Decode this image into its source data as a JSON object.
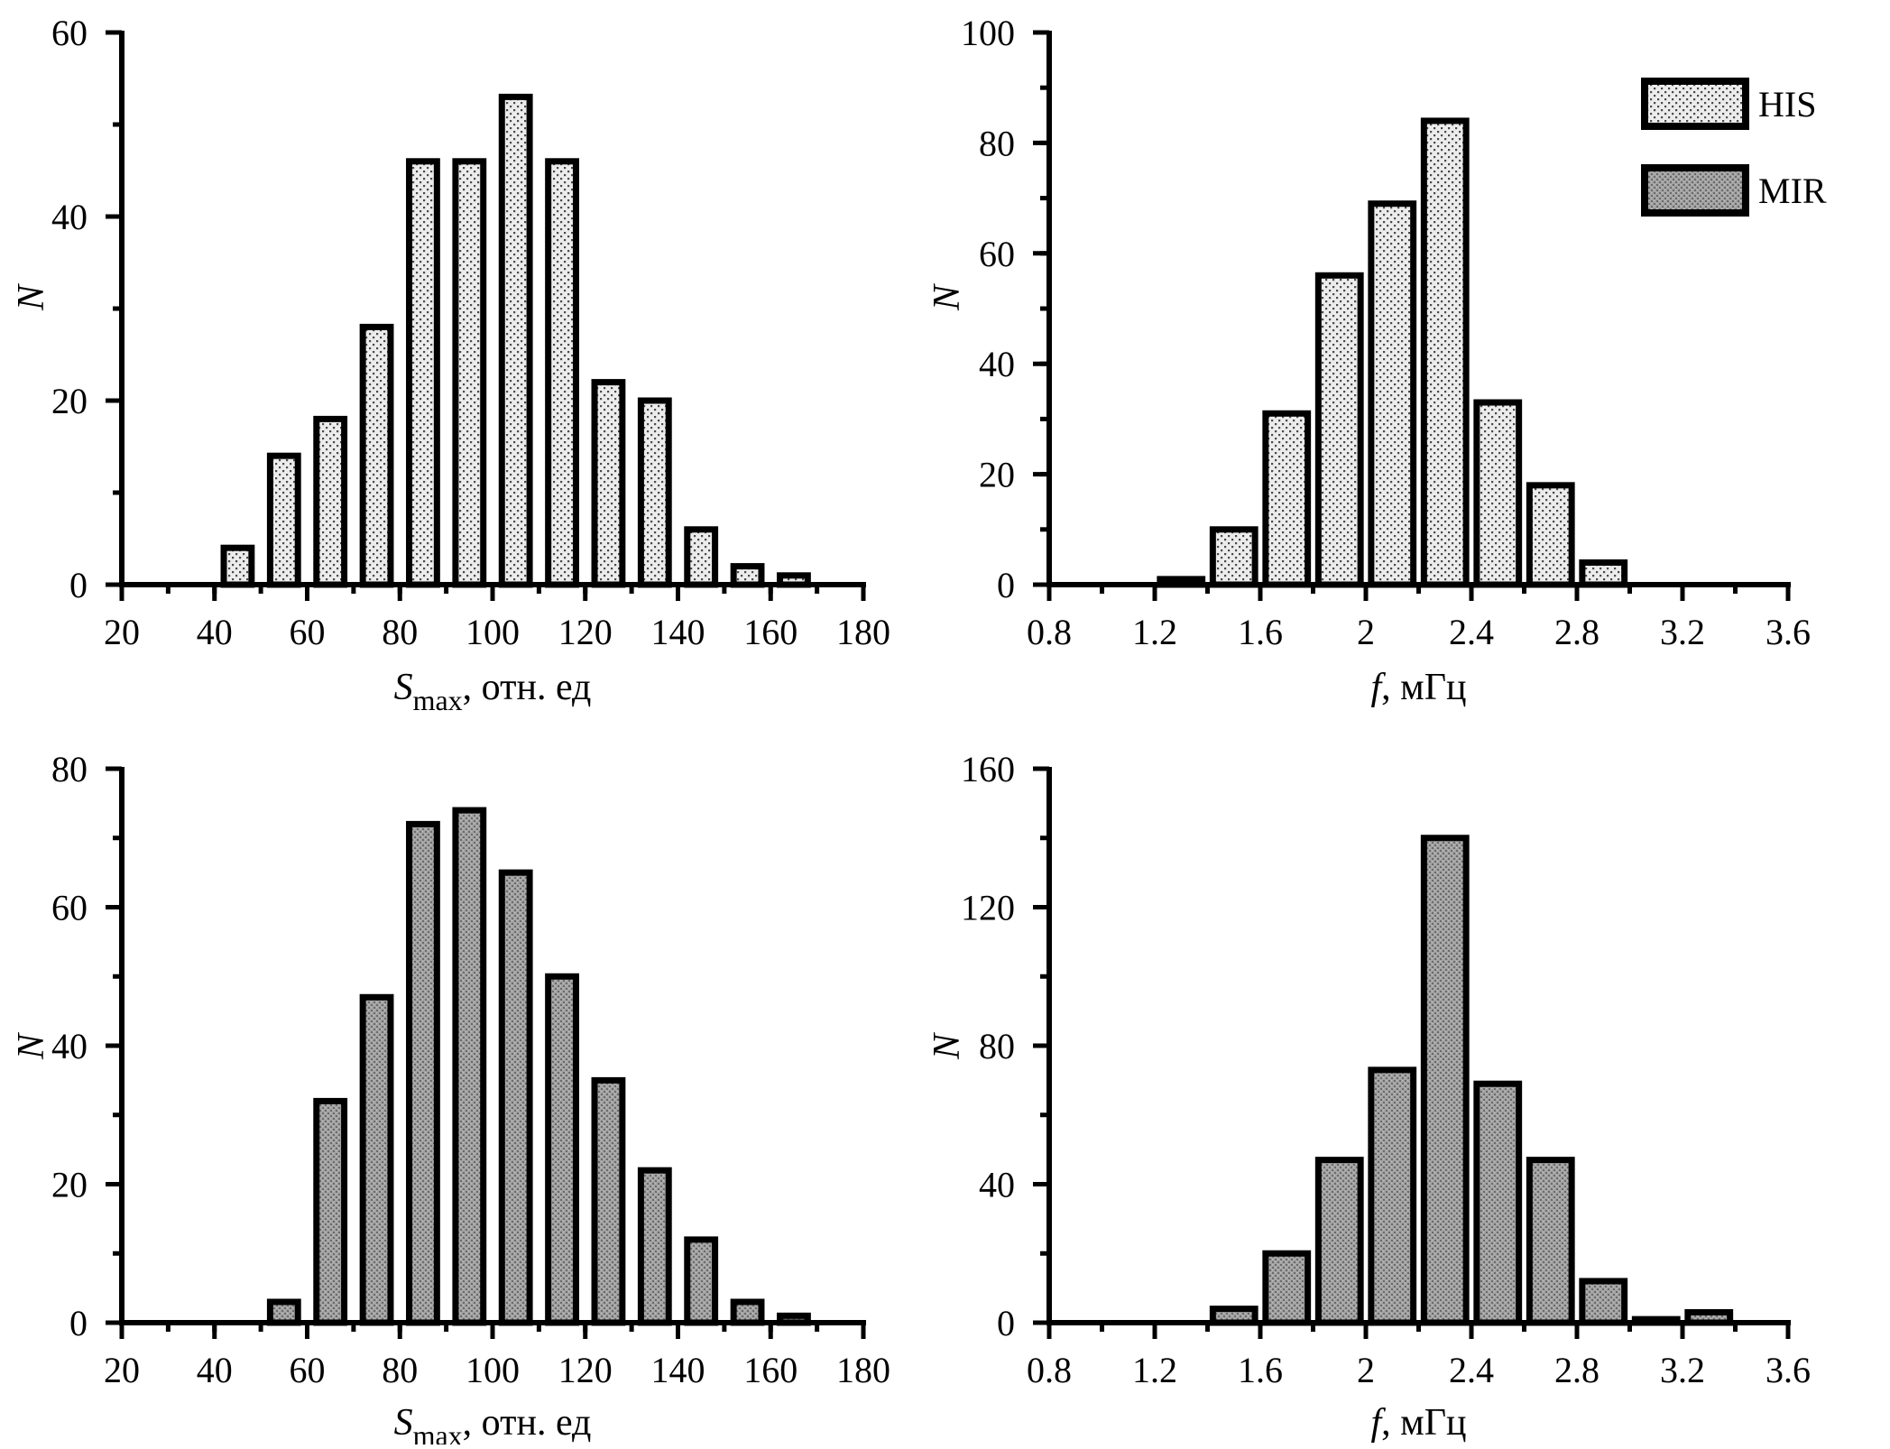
{
  "legend": {
    "his_label": "HIS",
    "mir_label": "MIR"
  },
  "colors": {
    "axis": "#000000",
    "his_fill": "#e9e9e9",
    "mir_fill": "#9a9a9a",
    "dot_dark": "#5a5a5a"
  },
  "chart_data": [
    {
      "id": "his-smax",
      "type": "bar",
      "series_name": "HIS",
      "pattern": "his",
      "title": "",
      "xlabel": {
        "main": "S",
        "sub": "max",
        "suffix": ", отн. ед"
      },
      "ylabel": "N",
      "xlim": [
        20,
        180
      ],
      "ylim": [
        0,
        60
      ],
      "x_ticks": [
        20,
        40,
        60,
        80,
        100,
        120,
        140,
        160,
        180
      ],
      "x_tick_labels": [
        "20",
        "40",
        "60",
        "80",
        "100",
        "120",
        "140",
        "160",
        "180"
      ],
      "y_ticks": [
        0,
        20,
        40,
        60
      ],
      "y_tick_labels": [
        "0",
        "20",
        "40",
        "60"
      ],
      "minor_x": 10,
      "minor_y": 10,
      "bar_width": 6,
      "x": [
        45,
        55,
        65,
        75,
        85,
        95,
        105,
        115,
        125,
        135,
        145,
        155,
        165
      ],
      "values": [
        4,
        14,
        18,
        28,
        46,
        46,
        53,
        46,
        22,
        20,
        6,
        2,
        1
      ]
    },
    {
      "id": "his-f",
      "type": "bar",
      "series_name": "HIS",
      "pattern": "his",
      "title": "",
      "xlabel": {
        "main": "f",
        "sub": "",
        "suffix": ", мГц"
      },
      "ylabel": "N",
      "xlim": [
        0.8,
        3.6
      ],
      "ylim": [
        0,
        100
      ],
      "x_ticks": [
        0.8,
        1.2,
        1.6,
        2.0,
        2.4,
        2.8,
        3.2,
        3.6
      ],
      "x_tick_labels": [
        "0.8",
        "1.2",
        "1.6",
        "2",
        "2.4",
        "2.8",
        "3.2",
        "3.6"
      ],
      "y_ticks": [
        0,
        20,
        40,
        60,
        80,
        100
      ],
      "y_tick_labels": [
        "0",
        "20",
        "40",
        "60",
        "80",
        "100"
      ],
      "minor_x": 0.2,
      "minor_y": 10,
      "bar_width": 0.16,
      "x": [
        1.3,
        1.5,
        1.7,
        1.9,
        2.1,
        2.3,
        2.5,
        2.7,
        2.9
      ],
      "values": [
        1,
        10,
        31,
        56,
        69,
        84,
        33,
        18,
        4
      ]
    },
    {
      "id": "mir-smax",
      "type": "bar",
      "series_name": "MIR",
      "pattern": "mir",
      "title": "",
      "xlabel": {
        "main": "S",
        "sub": "max",
        "suffix": ", отн. ед"
      },
      "ylabel": "N",
      "xlim": [
        20,
        180
      ],
      "ylim": [
        0,
        80
      ],
      "x_ticks": [
        20,
        40,
        60,
        80,
        100,
        120,
        140,
        160,
        180
      ],
      "x_tick_labels": [
        "20",
        "40",
        "60",
        "80",
        "100",
        "120",
        "140",
        "160",
        "180"
      ],
      "y_ticks": [
        0,
        20,
        40,
        60,
        80
      ],
      "y_tick_labels": [
        "0",
        "20",
        "40",
        "60",
        "80"
      ],
      "minor_x": 10,
      "minor_y": 10,
      "bar_width": 6,
      "x": [
        55,
        65,
        75,
        85,
        95,
        105,
        115,
        125,
        135,
        145,
        155,
        165
      ],
      "values": [
        3,
        32,
        47,
        72,
        74,
        65,
        50,
        35,
        22,
        12,
        3,
        1
      ]
    },
    {
      "id": "mir-f",
      "type": "bar",
      "series_name": "MIR",
      "pattern": "mir",
      "title": "",
      "xlabel": {
        "main": "f",
        "sub": "",
        "suffix": ", мГц"
      },
      "ylabel": "N",
      "xlim": [
        0.8,
        3.6
      ],
      "ylim": [
        0,
        160
      ],
      "x_ticks": [
        0.8,
        1.2,
        1.6,
        2.0,
        2.4,
        2.8,
        3.2,
        3.6
      ],
      "x_tick_labels": [
        "0.8",
        "1.2",
        "1.6",
        "2",
        "2.4",
        "2.8",
        "3.2",
        "3.6"
      ],
      "y_ticks": [
        0,
        40,
        80,
        120,
        160
      ],
      "y_tick_labels": [
        "0",
        "40",
        "80",
        "120",
        "160"
      ],
      "minor_x": 0.2,
      "minor_y": 20,
      "bar_width": 0.16,
      "x": [
        1.5,
        1.7,
        1.9,
        2.1,
        2.3,
        2.5,
        2.7,
        2.9,
        3.1,
        3.3
      ],
      "values": [
        4,
        20,
        47,
        73,
        140,
        69,
        47,
        12,
        1,
        3
      ]
    }
  ]
}
